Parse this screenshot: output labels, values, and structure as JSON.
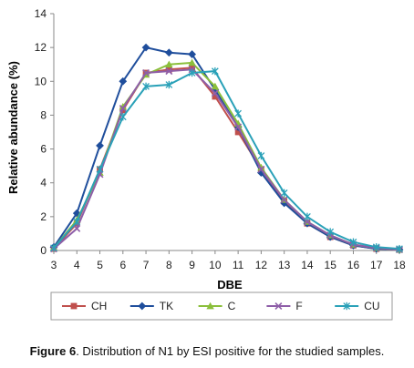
{
  "caption": {
    "lead": "Figure 6",
    "text": ". Distribution of N1 by ESI positive for the studied samples."
  },
  "chart_data": {
    "type": "line",
    "title": "",
    "xlabel": "DBE",
    "ylabel": "Relative abundance (%)",
    "x": [
      3,
      4,
      5,
      6,
      7,
      8,
      9,
      10,
      11,
      12,
      13,
      14,
      15,
      16,
      17,
      18
    ],
    "xlim": [
      3,
      18
    ],
    "ylim": [
      0,
      14
    ],
    "yticks": [
      0,
      2,
      4,
      6,
      8,
      10,
      12,
      14
    ],
    "grid": false,
    "legend": "bottom",
    "series": [
      {
        "name": "CH",
        "color": "#c0504d",
        "marker": "square",
        "values": [
          0.1,
          1.6,
          4.8,
          8.3,
          10.5,
          10.7,
          10.8,
          9.1,
          7.0,
          4.8,
          2.9,
          1.6,
          0.8,
          0.3,
          0.1,
          0.05
        ]
      },
      {
        "name": "TK",
        "color": "#1f4e9c",
        "marker": "diamond",
        "values": [
          0.2,
          2.2,
          6.2,
          10.0,
          12.0,
          11.7,
          11.6,
          9.5,
          7.3,
          4.6,
          2.8,
          1.6,
          0.8,
          0.3,
          0.1,
          0.05
        ]
      },
      {
        "name": "C",
        "color": "#8bbf3b",
        "marker": "triangle",
        "values": [
          0.15,
          1.8,
          4.6,
          8.5,
          10.4,
          11.0,
          11.1,
          9.7,
          7.5,
          4.9,
          3.0,
          1.7,
          0.9,
          0.35,
          0.15,
          0.05
        ]
      },
      {
        "name": "F",
        "color": "#8e5ea8",
        "marker": "x",
        "values": [
          0.1,
          1.3,
          4.5,
          8.4,
          10.5,
          10.6,
          10.7,
          9.3,
          7.3,
          4.8,
          3.0,
          1.7,
          0.9,
          0.35,
          0.15,
          0.05
        ]
      },
      {
        "name": "CU",
        "color": "#2aa1b8",
        "marker": "star",
        "values": [
          0.15,
          1.7,
          4.8,
          7.9,
          9.7,
          9.8,
          10.5,
          10.6,
          8.1,
          5.6,
          3.4,
          2.0,
          1.1,
          0.5,
          0.2,
          0.1
        ]
      }
    ]
  }
}
